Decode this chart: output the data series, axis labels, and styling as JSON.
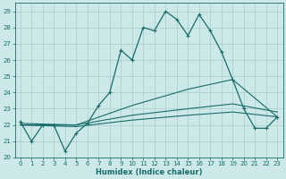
{
  "xlabel": "Humidex (Indice chaleur)",
  "bg_color": "#cce8e8",
  "grid_color": "#b0cfcf",
  "line_color": "#1a6b6b",
  "xlim": [
    -0.5,
    23.5
  ],
  "ylim": [
    20.0,
    29.5
  ],
  "yticks": [
    20,
    21,
    22,
    23,
    24,
    25,
    26,
    27,
    28,
    29
  ],
  "xticks": [
    0,
    1,
    2,
    3,
    4,
    5,
    6,
    7,
    8,
    9,
    10,
    11,
    12,
    13,
    14,
    15,
    16,
    17,
    18,
    19,
    20,
    21,
    22,
    23
  ],
  "series1_x": [
    0,
    1,
    2,
    3,
    4,
    5,
    6,
    7,
    8,
    9,
    10,
    11,
    12,
    13,
    14,
    15,
    16,
    17,
    18,
    19,
    20,
    21,
    22,
    23
  ],
  "series1_y": [
    22.2,
    21.0,
    22.0,
    22.0,
    20.4,
    21.5,
    22.1,
    23.2,
    24.0,
    26.6,
    26.0,
    28.0,
    27.8,
    29.0,
    28.5,
    27.5,
    28.8,
    27.8,
    26.5,
    24.8,
    23.0,
    21.8,
    21.8,
    22.5
  ],
  "series2_x": [
    0,
    5,
    10,
    15,
    19,
    23
  ],
  "series2_y": [
    22.1,
    22.0,
    23.2,
    24.2,
    24.8,
    22.5
  ],
  "series3_x": [
    0,
    5,
    10,
    15,
    19,
    23
  ],
  "series3_y": [
    22.0,
    22.0,
    22.6,
    23.0,
    23.3,
    22.8
  ],
  "series4_x": [
    0,
    5,
    10,
    15,
    19,
    23
  ],
  "series4_y": [
    22.0,
    21.9,
    22.3,
    22.6,
    22.8,
    22.5
  ]
}
